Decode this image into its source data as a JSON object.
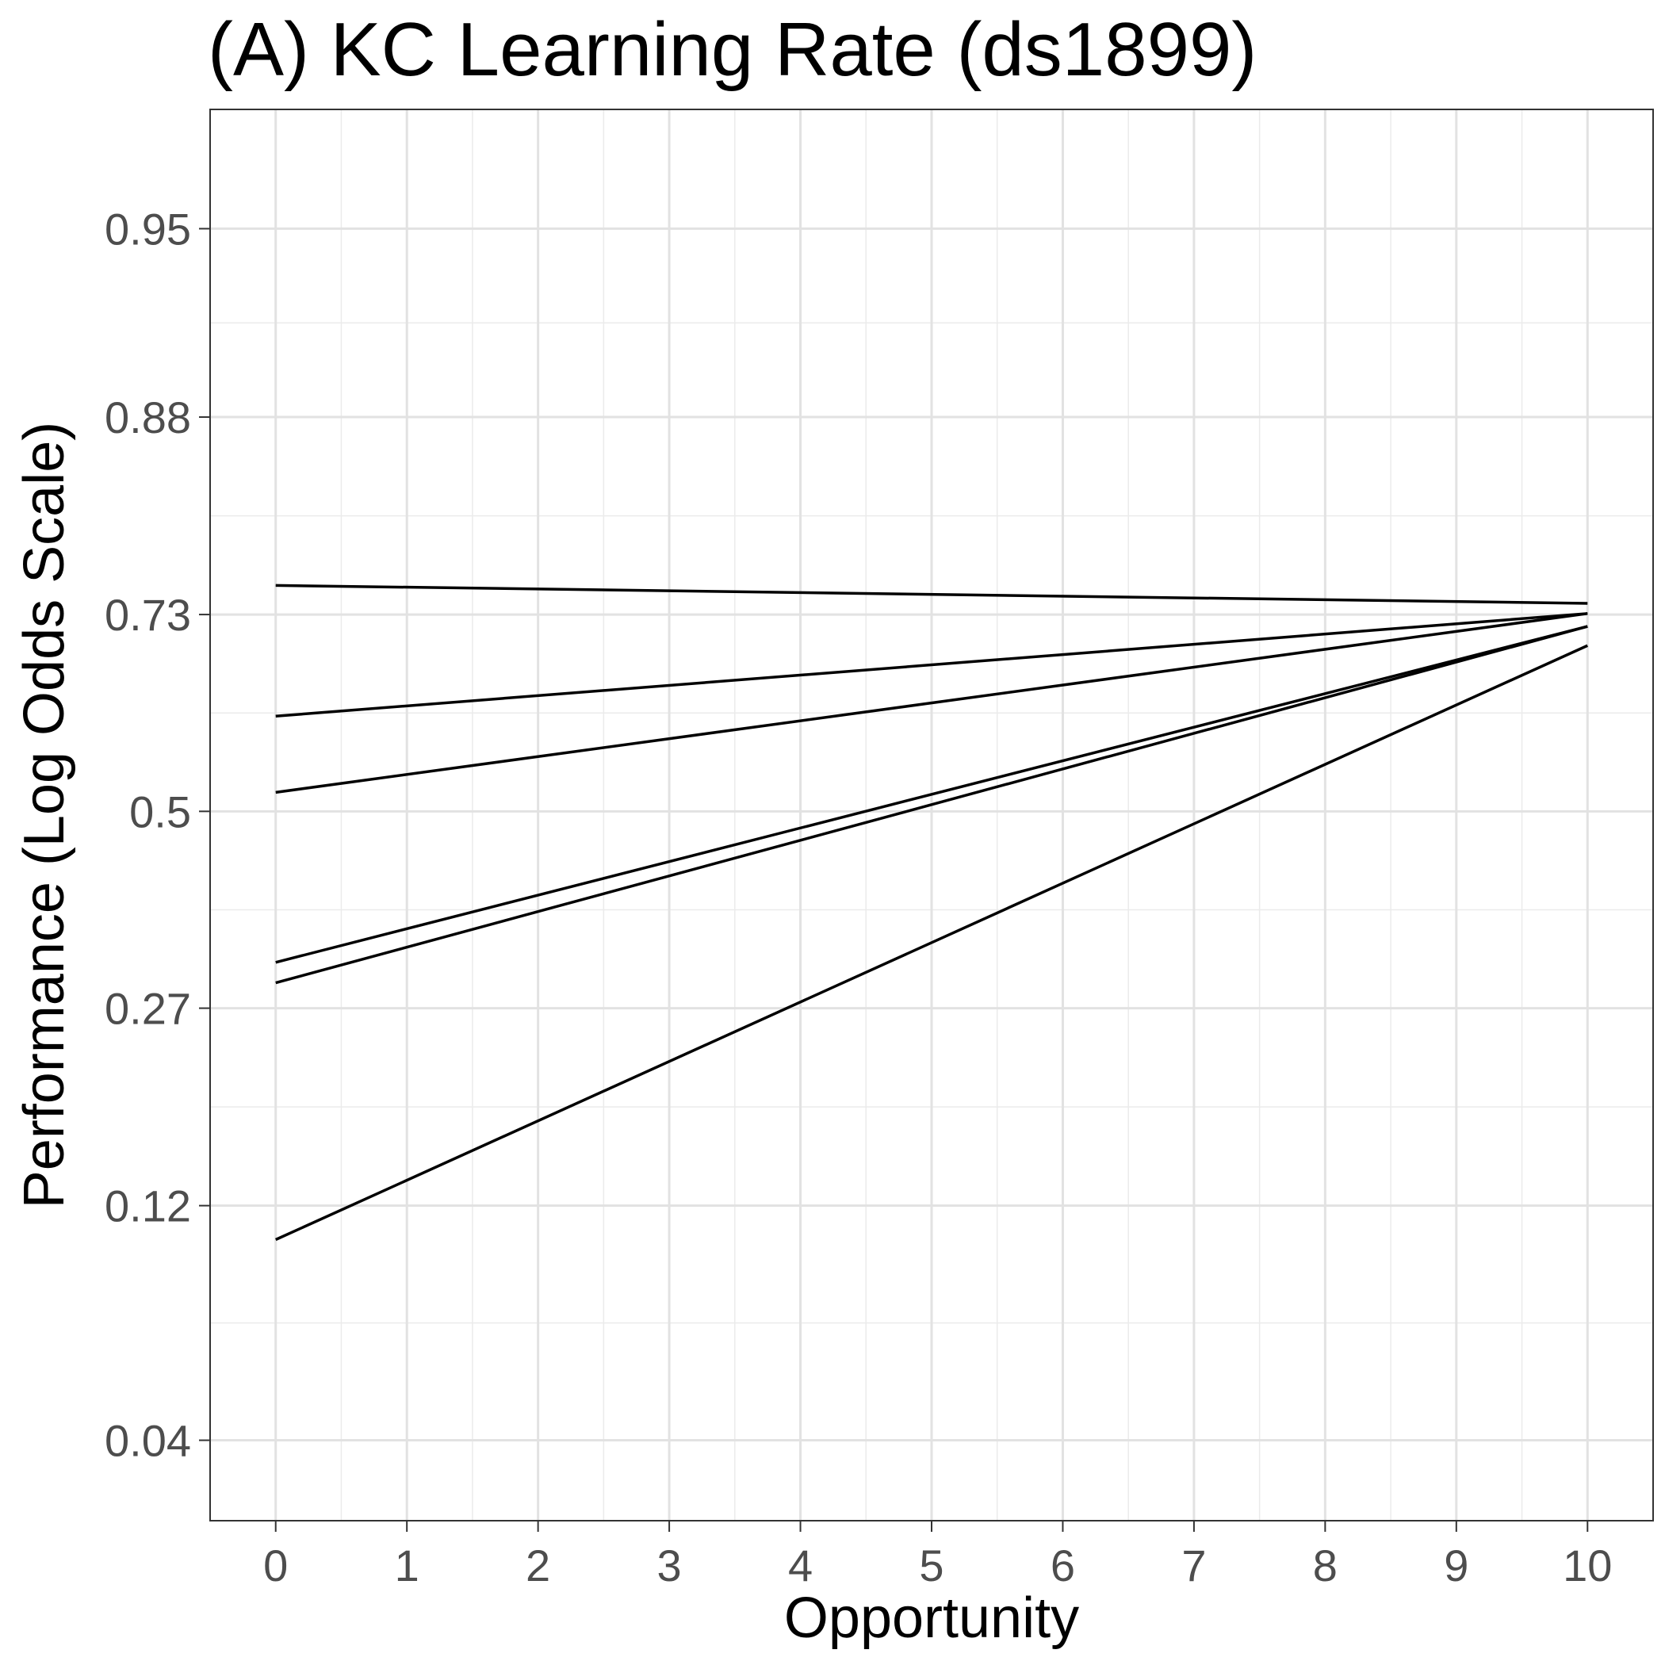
{
  "chart_data": {
    "type": "line",
    "title": "(A) KC Learning Rate (ds1899)",
    "xlabel": "Opportunity",
    "ylabel": "Performance (Log Odds Scale)",
    "x_ticks": [
      0,
      1,
      2,
      3,
      4,
      5,
      6,
      7,
      8,
      9,
      10
    ],
    "y_ticks": [
      0.04,
      0.12,
      0.27,
      0.5,
      0.73,
      0.88,
      0.95
    ],
    "y_scale": "logit",
    "xlim": [
      -0.5,
      10.5
    ],
    "ylim": [
      0.027,
      0.972
    ],
    "grid": true,
    "line_color": "#000000",
    "series": [
      {
        "x": [
          0,
          10
        ],
        "y": [
          0.758,
          0.741
        ]
      },
      {
        "x": [
          0,
          10
        ],
        "y": [
          0.618,
          0.731
        ]
      },
      {
        "x": [
          0,
          10
        ],
        "y": [
          0.524,
          0.731
        ]
      },
      {
        "x": [
          0,
          10
        ],
        "y": [
          0.318,
          0.718
        ]
      },
      {
        "x": [
          0,
          10
        ],
        "y": [
          0.296,
          0.718
        ]
      },
      {
        "x": [
          0,
          10
        ],
        "y": [
          0.103,
          0.698
        ]
      }
    ]
  }
}
